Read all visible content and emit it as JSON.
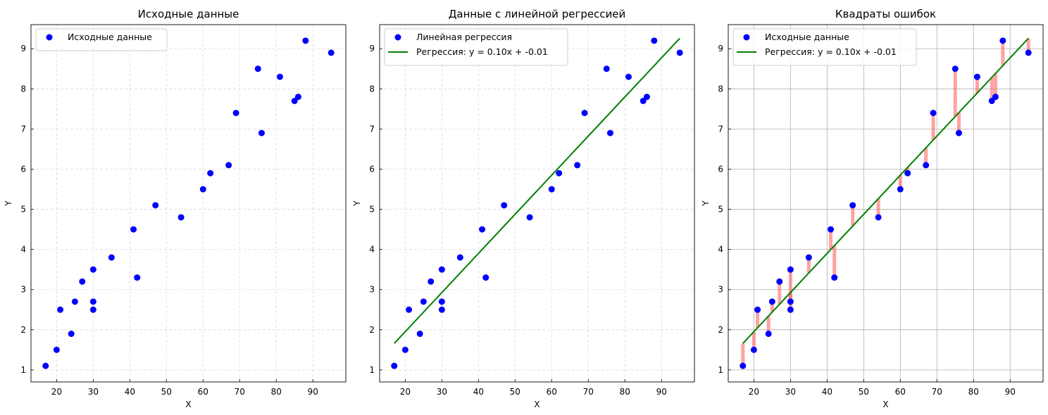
{
  "colors": {
    "points": "#0000ff",
    "line": "#008000",
    "residual": "#ff6666",
    "grid_dashed": "#d9d9d9",
    "grid_solid": "#b0b0b0"
  },
  "chart_data": [
    {
      "type": "scatter",
      "title": "Исходные данные",
      "xlabel": "X",
      "ylabel": "Y",
      "xlim": [
        13,
        99
      ],
      "ylim": [
        0.7,
        9.6
      ],
      "xticks": [
        20,
        30,
        40,
        50,
        60,
        70,
        80,
        90
      ],
      "yticks": [
        1,
        2,
        3,
        4,
        5,
        6,
        7,
        8,
        9
      ],
      "grid": "dashed",
      "legend_position": "top-left",
      "series": [
        {
          "name": "Исходные данные",
          "kind": "points",
          "x": [
            17,
            20,
            21,
            24,
            25,
            27,
            30,
            30,
            30,
            35,
            41,
            42,
            47,
            54,
            60,
            62,
            67,
            69,
            75,
            76,
            81,
            85,
            86,
            88,
            95
          ],
          "y": [
            1.1,
            1.5,
            2.5,
            1.9,
            2.7,
            3.2,
            3.5,
            2.7,
            2.5,
            3.8,
            4.5,
            3.3,
            5.1,
            4.8,
            5.5,
            5.9,
            6.1,
            7.4,
            8.5,
            6.9,
            8.3,
            7.7,
            7.8,
            9.2,
            8.9
          ]
        }
      ]
    },
    {
      "type": "scatter",
      "title": "Данные с линейной регрессией",
      "xlabel": "X",
      "ylabel": "Y",
      "xlim": [
        13,
        99
      ],
      "ylim": [
        0.7,
        9.6
      ],
      "xticks": [
        20,
        30,
        40,
        50,
        60,
        70,
        80,
        90
      ],
      "yticks": [
        1,
        2,
        3,
        4,
        5,
        6,
        7,
        8,
        9
      ],
      "grid": "dashed",
      "legend_position": "top-left",
      "series": [
        {
          "name": "Линейная регрессия",
          "kind": "points",
          "x": [
            17,
            20,
            21,
            24,
            25,
            27,
            30,
            30,
            30,
            35,
            41,
            42,
            47,
            54,
            60,
            62,
            67,
            69,
            75,
            76,
            81,
            85,
            86,
            88,
            95
          ],
          "y": [
            1.1,
            1.5,
            2.5,
            1.9,
            2.7,
            3.2,
            3.5,
            2.7,
            2.5,
            3.8,
            4.5,
            3.3,
            5.1,
            4.8,
            5.5,
            5.9,
            6.1,
            7.4,
            8.5,
            6.9,
            8.3,
            7.7,
            7.8,
            9.2,
            8.9
          ]
        },
        {
          "name": "Регрессия: y = 0.10x + -0.01",
          "kind": "line",
          "x": [
            17,
            95
          ],
          "y": [
            1.66,
            9.26
          ]
        }
      ]
    },
    {
      "type": "scatter",
      "title": "Квадраты ошибок",
      "xlabel": "X",
      "ylabel": "Y",
      "xlim": [
        13,
        99
      ],
      "ylim": [
        0.7,
        9.6
      ],
      "xticks": [
        20,
        30,
        40,
        50,
        60,
        70,
        80,
        90
      ],
      "yticks": [
        1,
        2,
        3,
        4,
        5,
        6,
        7,
        8,
        9
      ],
      "grid": "solid",
      "legend_position": "top-left",
      "residuals": true,
      "series": [
        {
          "name": "Исходные данные",
          "kind": "points",
          "x": [
            17,
            20,
            21,
            24,
            25,
            27,
            30,
            30,
            30,
            35,
            41,
            42,
            47,
            54,
            60,
            62,
            67,
            69,
            75,
            76,
            81,
            85,
            86,
            88,
            95
          ],
          "y": [
            1.1,
            1.5,
            2.5,
            1.9,
            2.7,
            3.2,
            3.5,
            2.7,
            2.5,
            3.8,
            4.5,
            3.3,
            5.1,
            4.8,
            5.5,
            5.9,
            6.1,
            7.4,
            8.5,
            6.9,
            8.3,
            7.7,
            7.8,
            9.2,
            8.9
          ]
        },
        {
          "name": "Регрессия: y = 0.10x + -0.01",
          "kind": "line",
          "x": [
            17,
            95
          ],
          "y": [
            1.66,
            9.26
          ]
        }
      ]
    }
  ]
}
